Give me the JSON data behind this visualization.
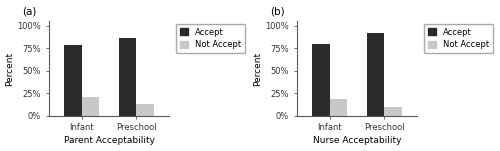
{
  "panel_a": {
    "title": "Parent Acceptability",
    "categories": [
      "Infant",
      "Preschool"
    ],
    "accept": [
      79,
      86
    ],
    "not_accept": [
      21,
      13
    ],
    "label": "(a)"
  },
  "panel_b": {
    "title": "Nurse Acceptability",
    "categories": [
      "Infant",
      "Preschool"
    ],
    "accept": [
      80,
      92
    ],
    "not_accept": [
      19,
      10
    ],
    "label": "(b)"
  },
  "accept_color": "#2b2b2b",
  "not_accept_color": "#c8c8c8",
  "bar_width": 0.32,
  "ylim": [
    0,
    105
  ],
  "yticks": [
    0,
    25,
    50,
    75,
    100
  ],
  "ytick_labels": [
    "0%",
    "25%",
    "50%",
    "75%",
    "100%"
  ],
  "ylabel": "Percent",
  "legend_labels": [
    "Accept",
    "Not Accept"
  ],
  "fontsize_ticks": 6.0,
  "fontsize_label": 6.5,
  "fontsize_title": 6.5,
  "fontsize_legend": 6.0,
  "fontsize_panel_label": 7.5,
  "background_color": "#ffffff"
}
